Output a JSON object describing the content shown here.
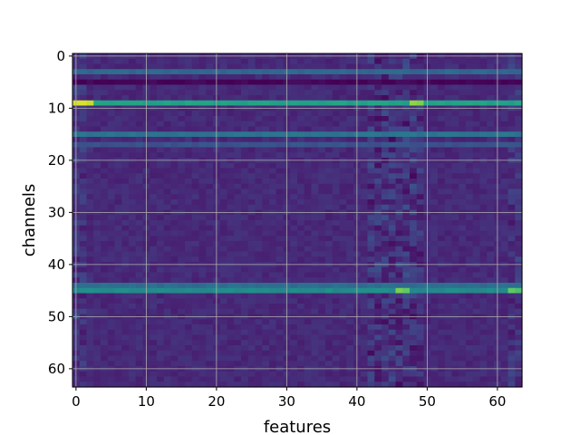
{
  "chart_data": {
    "type": "heatmap",
    "title": "",
    "xlabel": "features",
    "ylabel": "channels",
    "xlim": [
      -0.5,
      63.5
    ],
    "ylim": [
      63.5,
      -0.5
    ],
    "xticks": [
      0,
      10,
      20,
      30,
      40,
      50,
      60
    ],
    "yticks": [
      0,
      10,
      20,
      30,
      40,
      50,
      60
    ],
    "xtick_labels": [
      "0",
      "10",
      "20",
      "30",
      "40",
      "50",
      "60"
    ],
    "ytick_labels": [
      "0",
      "10",
      "20",
      "30",
      "40",
      "50",
      "60"
    ],
    "grid": true,
    "colormap": "viridis",
    "value_range": [
      0,
      1
    ],
    "shape": [
      64,
      64
    ],
    "baseline_value": 0.15,
    "bright_rows": [
      {
        "row": 9,
        "value": 0.72,
        "peaks": [
          {
            "col": 0,
            "value": 0.97
          },
          {
            "col": 1,
            "value": 0.97
          },
          {
            "col": 2,
            "value": 0.95
          },
          {
            "col": 48,
            "value": 0.9
          },
          {
            "col": 49,
            "value": 0.88
          }
        ]
      },
      {
        "row": 45,
        "value": 0.6,
        "peaks": [
          {
            "col": 46,
            "value": 0.88
          },
          {
            "col": 47,
            "value": 0.85
          },
          {
            "col": 62,
            "value": 0.85
          },
          {
            "col": 63,
            "value": 0.82
          }
        ]
      },
      {
        "row": 44,
        "value": 0.45
      },
      {
        "row": 15,
        "value": 0.48
      },
      {
        "row": 3,
        "value": 0.42
      },
      {
        "row": 5,
        "value": 0.02
      },
      {
        "row": 17,
        "value": 0.32
      }
    ],
    "speckled_columns": [
      42,
      43,
      44,
      45,
      46,
      47,
      48,
      49
    ],
    "edge_columns": [
      0,
      1,
      62,
      63
    ],
    "colors": {
      "low": "#440154",
      "mid": "#21918c",
      "high": "#fde725",
      "grid": "#b0b0b0"
    }
  }
}
